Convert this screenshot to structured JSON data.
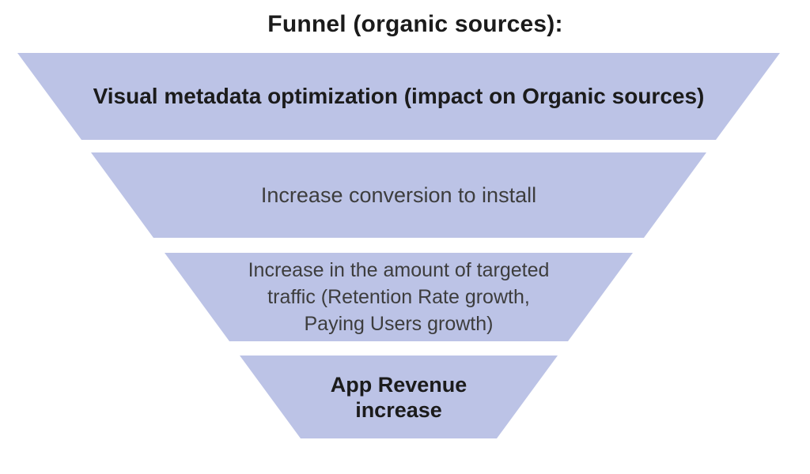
{
  "title": "Funnel (organic sources):",
  "colors": {
    "funnel_fill": "#bcc3e6",
    "heading_text": "#1b1b1b",
    "body_text": "#3d3d3d",
    "background": "#ffffff"
  },
  "funnel": {
    "levels": [
      {
        "label": "Visual metadata optimization (impact on Organic sources)",
        "emphasis": "bold"
      },
      {
        "label": "Increase conversion to install",
        "emphasis": "regular"
      },
      {
        "label": "Increase in the amount of targeted\ntraffic (Retention Rate growth,\nPaying Users growth)",
        "emphasis": "regular"
      },
      {
        "label": "App Revenue\nincrease",
        "emphasis": "bold"
      }
    ]
  }
}
